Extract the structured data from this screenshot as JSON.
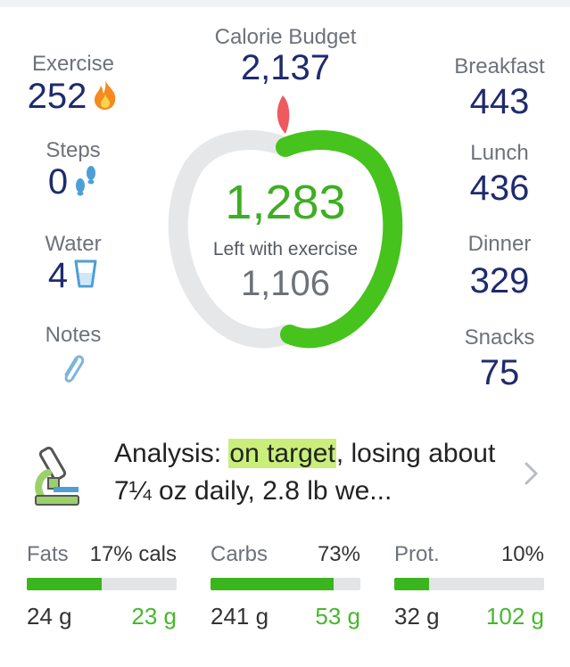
{
  "budget": {
    "label": "Calorie Budget",
    "value": "2,137"
  },
  "left_stats": [
    {
      "key": "exercise",
      "label": "Exercise",
      "value": "252",
      "icon": "flame-icon"
    },
    {
      "key": "steps",
      "label": "Steps",
      "value": "0",
      "icon": "footsteps-icon"
    },
    {
      "key": "water",
      "label": "Water",
      "value": "4",
      "icon": "water-glass-icon"
    },
    {
      "key": "notes",
      "label": "Notes",
      "icon": "paperclip-icon"
    }
  ],
  "meals": [
    {
      "label": "Breakfast",
      "value": "443"
    },
    {
      "label": "Lunch",
      "value": "436"
    },
    {
      "label": "Dinner",
      "value": "329"
    },
    {
      "label": "Snacks",
      "value": "75"
    }
  ],
  "apple": {
    "remaining": "1,283",
    "left_label": "Left with exercise",
    "left_value": "1,106",
    "progress_fraction": 0.5
  },
  "analysis": {
    "prefix": "Analysis: ",
    "highlight": "on target",
    "rest": ", losing about 7¼ oz daily, 2.8 lb we..."
  },
  "macros": [
    {
      "name": "Fats",
      "pct": "17% cals",
      "used": "24 g",
      "goal": "23 g",
      "fill_fraction": 0.5
    },
    {
      "name": "Carbs",
      "pct": "73%",
      "used": "241 g",
      "goal": "53 g",
      "fill_fraction": 0.82
    },
    {
      "name": "Prot.",
      "pct": "10%",
      "used": "32 g",
      "goal": "102 g",
      "fill_fraction": 0.23
    }
  ],
  "colors": {
    "accent_green": "#3bb51e",
    "number_navy": "#1f2b6e",
    "leaf_red": "#ee5a5e",
    "highlight": "#c9ef7a"
  }
}
